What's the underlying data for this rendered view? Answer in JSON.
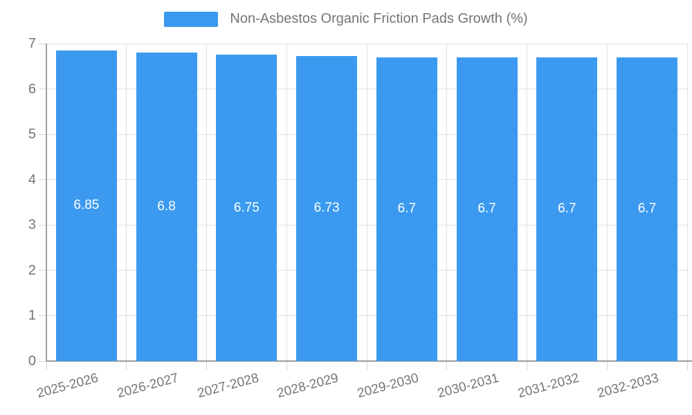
{
  "legend": {
    "label": "Non-Asbestos Organic Friction Pads Growth (%)",
    "swatch_color": "#3b9aef"
  },
  "chart_data": {
    "type": "bar",
    "title": "Non-Asbestos Organic Friction Pads Growth (%)",
    "categories": [
      "2025-2026",
      "2026-2027",
      "2027-2028",
      "2028-2029",
      "2029-2030",
      "2030-2031",
      "2031-2032",
      "2032-2033"
    ],
    "series": [
      {
        "name": "Non-Asbestos Organic Friction Pads Growth (%)",
        "values": [
          6.85,
          6.8,
          6.75,
          6.73,
          6.7,
          6.7,
          6.7,
          6.7
        ]
      }
    ],
    "value_labels": [
      "6.85",
      "6.8",
      "6.75",
      "6.73",
      "6.7",
      "6.7",
      "6.7",
      "6.7"
    ],
    "xlabel": "",
    "ylabel": "",
    "ylim": [
      0,
      7
    ],
    "yticks": [
      0,
      1,
      2,
      3,
      4,
      5,
      6,
      7
    ],
    "ytick_labels": [
      "0",
      "1",
      "2",
      "3",
      "4",
      "5",
      "6",
      "7"
    ],
    "grid": true,
    "legend_position": "top",
    "bar_color": "#3b9aef",
    "value_label_color": "#ffffff",
    "axis_text_color": "#757575",
    "gridline_color": "#e2e2e2",
    "axis_line_color": "#9c9c9c"
  }
}
